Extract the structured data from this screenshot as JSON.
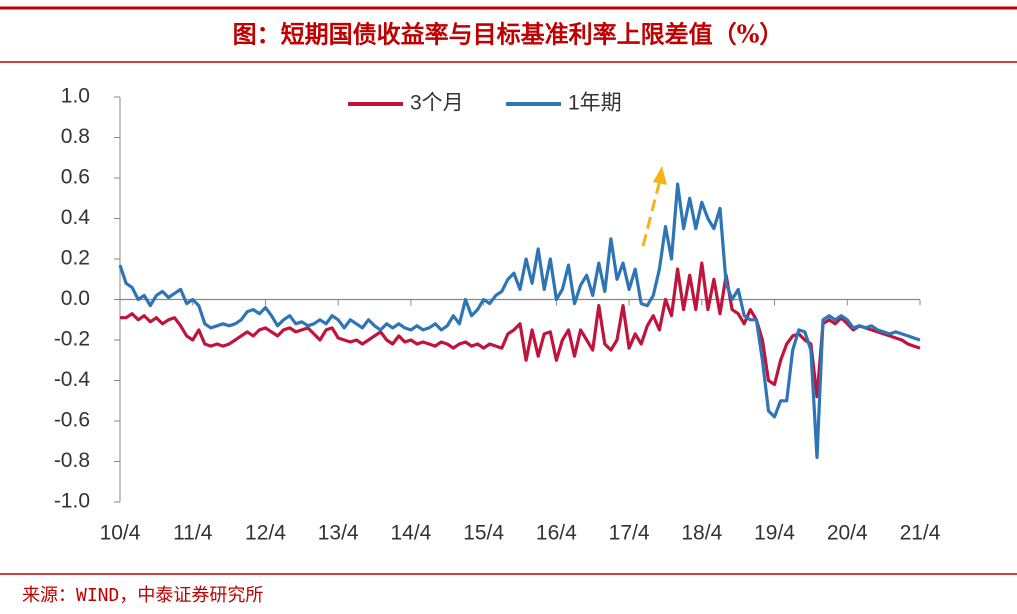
{
  "title": "图：短期国债收益率与目标基准利率上限差值（%）",
  "source": "来源：WIND，中泰证券研究所",
  "chart_data": {
    "type": "line",
    "categories": [
      "10/4",
      null,
      null,
      null,
      null,
      null,
      null,
      null,
      null,
      null,
      null,
      null,
      "11/4",
      null,
      null,
      null,
      null,
      null,
      null,
      null,
      null,
      null,
      null,
      null,
      "12/4",
      null,
      null,
      null,
      null,
      null,
      null,
      null,
      null,
      null,
      null,
      null,
      "13/4",
      null,
      null,
      null,
      null,
      null,
      null,
      null,
      null,
      null,
      null,
      null,
      "14/4",
      null,
      null,
      null,
      null,
      null,
      null,
      null,
      null,
      null,
      null,
      null,
      "15/4",
      null,
      null,
      null,
      null,
      null,
      null,
      null,
      null,
      null,
      null,
      null,
      "16/4",
      null,
      null,
      null,
      null,
      null,
      null,
      null,
      null,
      null,
      null,
      null,
      "17/4",
      null,
      null,
      null,
      null,
      null,
      null,
      null,
      null,
      null,
      null,
      null,
      "18/4",
      null,
      null,
      null,
      null,
      null,
      null,
      null,
      null,
      null,
      null,
      null,
      "19/4",
      null,
      null,
      null,
      null,
      null,
      null,
      null,
      null,
      null,
      null,
      null,
      "20/4",
      null,
      null,
      null,
      null,
      null,
      null,
      null,
      null,
      null,
      null,
      null,
      "21/4"
    ],
    "series": [
      {
        "name": "3个月",
        "color": "#c0143c",
        "values": [
          -0.09,
          -0.09,
          -0.07,
          -0.1,
          -0.08,
          -0.11,
          -0.09,
          -0.12,
          -0.1,
          -0.09,
          -0.13,
          -0.18,
          -0.2,
          -0.15,
          -0.22,
          -0.23,
          -0.22,
          -0.23,
          -0.22,
          -0.2,
          -0.18,
          -0.16,
          -0.18,
          -0.15,
          -0.14,
          -0.16,
          -0.18,
          -0.15,
          -0.14,
          -0.16,
          -0.15,
          -0.14,
          -0.17,
          -0.2,
          -0.15,
          -0.14,
          -0.19,
          -0.2,
          -0.21,
          -0.2,
          -0.22,
          -0.2,
          -0.18,
          -0.16,
          -0.2,
          -0.22,
          -0.18,
          -0.21,
          -0.2,
          -0.22,
          -0.21,
          -0.22,
          -0.23,
          -0.21,
          -0.22,
          -0.24,
          -0.22,
          -0.21,
          -0.23,
          -0.22,
          -0.24,
          -0.22,
          -0.23,
          -0.24,
          -0.17,
          -0.15,
          -0.12,
          -0.3,
          -0.15,
          -0.28,
          -0.17,
          -0.16,
          -0.3,
          -0.2,
          -0.15,
          -0.28,
          -0.15,
          -0.2,
          -0.25,
          -0.03,
          -0.22,
          -0.25,
          -0.2,
          -0.03,
          -0.24,
          -0.17,
          -0.22,
          -0.13,
          -0.08,
          -0.15,
          0.0,
          -0.08,
          0.15,
          -0.05,
          0.12,
          -0.05,
          0.18,
          -0.05,
          0.1,
          -0.07,
          0.12,
          -0.05,
          -0.07,
          -0.12,
          -0.05,
          -0.1,
          -0.2,
          -0.4,
          -0.42,
          -0.3,
          -0.22,
          -0.18,
          -0.17,
          -0.2,
          -0.22,
          -0.48,
          -0.12,
          -0.1,
          -0.12,
          -0.09,
          -0.12,
          -0.15,
          -0.13,
          -0.14,
          -0.15,
          -0.16,
          -0.17,
          -0.18,
          -0.19,
          -0.2,
          -0.22,
          -0.23,
          -0.24
        ]
      },
      {
        "name": "1年期",
        "color": "#2e75b6",
        "values": [
          0.17,
          0.08,
          0.06,
          0.0,
          0.02,
          -0.03,
          0.02,
          0.04,
          0.01,
          0.03,
          0.05,
          -0.02,
          0.0,
          -0.03,
          -0.12,
          -0.14,
          -0.13,
          -0.12,
          -0.13,
          -0.12,
          -0.1,
          -0.06,
          -0.05,
          -0.07,
          -0.04,
          -0.08,
          -0.13,
          -0.1,
          -0.08,
          -0.12,
          -0.11,
          -0.13,
          -0.12,
          -0.1,
          -0.12,
          -0.08,
          -0.1,
          -0.14,
          -0.1,
          -0.12,
          -0.14,
          -0.1,
          -0.13,
          -0.15,
          -0.12,
          -0.14,
          -0.12,
          -0.14,
          -0.15,
          -0.13,
          -0.15,
          -0.14,
          -0.12,
          -0.15,
          -0.13,
          -0.08,
          -0.12,
          0.0,
          -0.08,
          -0.05,
          0.0,
          -0.02,
          0.02,
          0.04,
          0.1,
          0.13,
          0.05,
          0.2,
          0.08,
          0.25,
          0.05,
          0.2,
          0.0,
          0.05,
          0.17,
          -0.02,
          0.07,
          0.12,
          0.02,
          0.18,
          0.04,
          0.3,
          0.1,
          0.18,
          0.05,
          0.15,
          -0.02,
          -0.03,
          0.02,
          0.15,
          0.36,
          0.2,
          0.57,
          0.35,
          0.5,
          0.35,
          0.48,
          0.4,
          0.35,
          0.45,
          0.08,
          0.0,
          0.05,
          -0.08,
          -0.1,
          -0.1,
          -0.3,
          -0.55,
          -0.58,
          -0.5,
          -0.5,
          -0.25,
          -0.15,
          -0.16,
          -0.25,
          -0.78,
          -0.1,
          -0.08,
          -0.1,
          -0.08,
          -0.1,
          -0.14,
          -0.13,
          -0.14,
          -0.13,
          -0.15,
          -0.16,
          -0.17,
          -0.16,
          -0.17,
          -0.18,
          -0.19,
          -0.2
        ]
      }
    ],
    "ylim": [
      -1,
      1
    ],
    "yticks": [
      {
        "value": -1,
        "label": "-1.0"
      },
      -0.8,
      -0.6,
      -0.4,
      -0.2,
      {
        "value": 0,
        "label": "0.0"
      },
      0.2,
      0.4,
      0.6,
      0.8,
      {
        "value": 1,
        "label": "1.0"
      }
    ],
    "legend": "top"
  }
}
